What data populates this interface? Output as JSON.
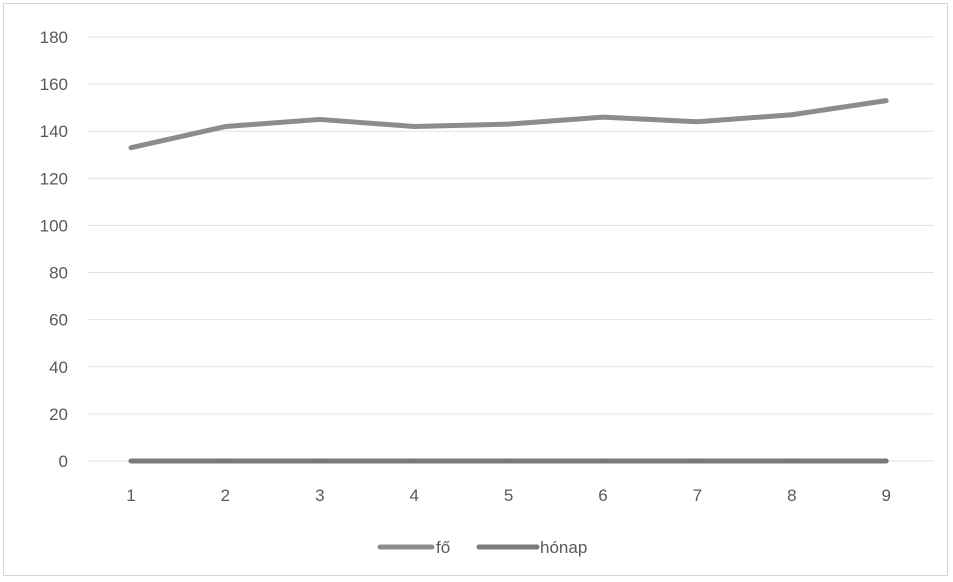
{
  "chart_data": {
    "type": "line",
    "title": "",
    "xlabel": "",
    "ylabel": "",
    "categories": [
      "1",
      "2",
      "3",
      "4",
      "5",
      "6",
      "7",
      "8",
      "9"
    ],
    "ylim": [
      0,
      180
    ],
    "yticks": [
      0,
      20,
      40,
      60,
      80,
      100,
      120,
      140,
      160,
      180
    ],
    "grid": true,
    "legend_position": "bottom",
    "series": [
      {
        "name": "fő",
        "values": [
          133,
          142,
          145,
          142,
          143,
          146,
          144,
          147,
          153
        ],
        "color": "#8c8c8c"
      },
      {
        "name": "hónap",
        "values": [
          0,
          0,
          0,
          0,
          0,
          0,
          0,
          0,
          0
        ],
        "color": "#7a7a7a"
      }
    ]
  }
}
